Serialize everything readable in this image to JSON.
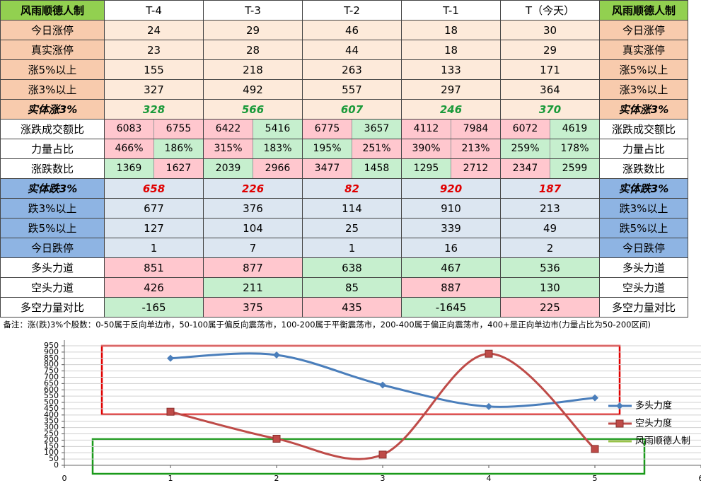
{
  "table": {
    "header": [
      "风雨顺德人制",
      "T-4",
      "T-3",
      "T-2",
      "T-1",
      "T（今天）",
      "风雨顺德人制"
    ],
    "rows": [
      {
        "label": "今日涨停",
        "cells": [
          "24",
          "29",
          "46",
          "18",
          "30"
        ]
      },
      {
        "label": "真实涨停",
        "cells": [
          "23",
          "28",
          "44",
          "18",
          "29"
        ]
      },
      {
        "label": "涨5%以上",
        "cells": [
          "155",
          "218",
          "263",
          "133",
          "171"
        ]
      },
      {
        "label": "涨3%以上",
        "cells": [
          "327",
          "492",
          "557",
          "297",
          "364"
        ]
      },
      {
        "label": "实体涨3%",
        "cells": [
          "328",
          "566",
          "607",
          "246",
          "370"
        ]
      },
      {
        "label": "涨跌成交额比",
        "cells": [
          [
            "6083",
            "6755"
          ],
          [
            "6422",
            "5416"
          ],
          [
            "6775",
            "3657"
          ],
          [
            "4112",
            "7984"
          ],
          [
            "6072",
            "4619"
          ]
        ]
      },
      {
        "label": "力量占比",
        "cells": [
          [
            "466%",
            "186%"
          ],
          [
            "315%",
            "183%"
          ],
          [
            "195%",
            "251%"
          ],
          [
            "390%",
            "213%"
          ],
          [
            "259%",
            "178%"
          ]
        ]
      },
      {
        "label": "涨跌数比",
        "cells": [
          [
            "1369",
            "1627"
          ],
          [
            "2039",
            "2966"
          ],
          [
            "3477",
            "1458"
          ],
          [
            "1295",
            "2712"
          ],
          [
            "2347",
            "2599"
          ]
        ]
      },
      {
        "label": "实体跌3%",
        "cells": [
          "658",
          "226",
          "82",
          "920",
          "187"
        ]
      },
      {
        "label": "跌3%以上",
        "cells": [
          "677",
          "376",
          "114",
          "910",
          "213"
        ]
      },
      {
        "label": "跌5%以上",
        "cells": [
          "127",
          "104",
          "25",
          "339",
          "49"
        ]
      },
      {
        "label": "今日跌停",
        "cells": [
          "1",
          "7",
          "1",
          "16",
          "2"
        ]
      },
      {
        "label": "多头力道",
        "cells": [
          "851",
          "877",
          "638",
          "467",
          "536"
        ]
      },
      {
        "label": "空头力道",
        "cells": [
          "426",
          "211",
          "85",
          "887",
          "130"
        ]
      },
      {
        "label": "多空力量对比",
        "cells": [
          "-165",
          "375",
          "435",
          "-1645",
          "225"
        ]
      }
    ],
    "note": "备注：涨(跌)3%个股数：0-50属于反向单边市，50-100属于偏反向震荡市，100-200属于平衡震荡市，200-400属于偏正向震荡市，400+是正向单边市(力量占比为50-200区间)"
  },
  "chart_data": {
    "type": "line",
    "smooth": true,
    "x": [
      1,
      2,
      3,
      4,
      5
    ],
    "series": [
      {
        "name": "多头力度",
        "color": "#4a7ebb",
        "marker": "diamond",
        "values": [
          851,
          877,
          638,
          467,
          536
        ]
      },
      {
        "name": "空头力度",
        "color": "#be4b48",
        "marker": "square",
        "values": [
          426,
          211,
          85,
          887,
          130
        ]
      },
      {
        "name": "风雨顺德人制",
        "color": "#98c34a",
        "marker": "none",
        "values": [
          null,
          null,
          null,
          null,
          null
        ]
      }
    ],
    "xlim": [
      0,
      6
    ],
    "xticks": [
      0,
      1,
      2,
      3,
      4,
      5,
      6
    ],
    "ylim": [
      0,
      950
    ],
    "yticks": [
      0,
      50,
      100,
      150,
      200,
      250,
      300,
      350,
      400,
      450,
      500,
      550,
      600,
      650,
      700,
      750,
      800,
      850,
      900,
      950
    ],
    "grid": true
  }
}
